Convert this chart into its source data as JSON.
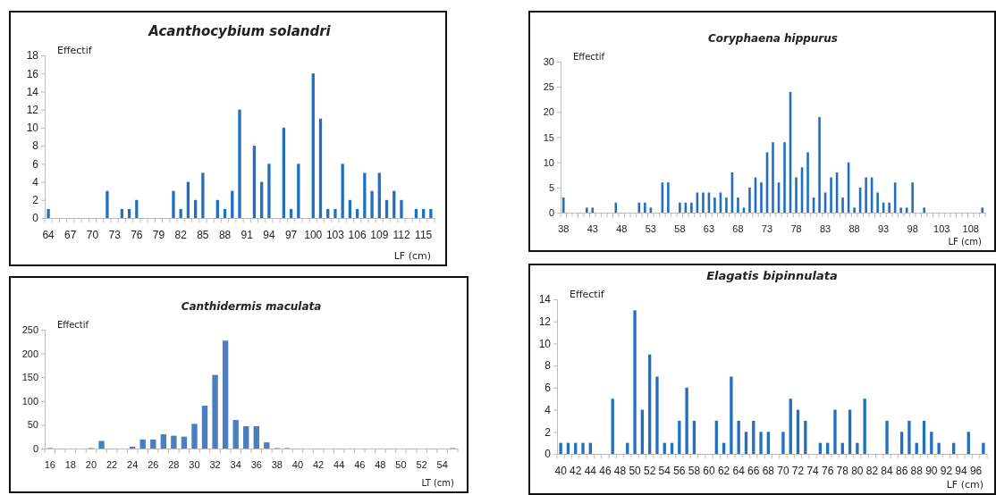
{
  "chart_data": [
    {
      "type": "bar",
      "title": "Acanthocybium solandri",
      "xlabel": "LF (cm)",
      "ylabel": "Effectif",
      "color": "#1f70c1",
      "ylim": [
        0,
        18
      ],
      "yticks": [
        0,
        2,
        4,
        6,
        8,
        10,
        12,
        14,
        16,
        18
      ],
      "categories": [
        "64",
        null,
        null,
        "67",
        null,
        null,
        "70",
        null,
        null,
        "73",
        null,
        null,
        "76",
        null,
        null,
        "79",
        null,
        null,
        "82",
        null,
        null,
        "85",
        null,
        null,
        "88",
        null,
        null,
        "91",
        null,
        null,
        "94",
        null,
        null,
        "97",
        null,
        null,
        "100",
        null,
        null,
        "103",
        null,
        null,
        "106",
        null,
        null,
        "109",
        null,
        null,
        "112",
        null,
        null,
        "115",
        null
      ],
      "values": [
        1,
        0,
        0,
        0,
        0,
        0,
        0,
        0,
        3,
        0,
        1,
        1,
        2,
        0,
        0,
        0,
        0,
        3,
        1,
        4,
        2,
        5,
        0,
        2,
        1,
        3,
        12,
        0,
        8,
        4,
        6,
        0,
        10,
        1,
        6,
        0,
        16,
        11,
        1,
        1,
        6,
        2,
        1,
        5,
        3,
        5,
        2,
        3,
        2,
        0,
        1,
        1,
        1
      ]
    },
    {
      "type": "bar",
      "title": "Coryphaena hippurus",
      "xlabel": "LF (cm)",
      "ylabel": "Effectif",
      "color": "#1f70c1",
      "ylim": [
        0,
        30
      ],
      "yticks": [
        0,
        5,
        10,
        15,
        20,
        25,
        30
      ],
      "categories": [
        "38",
        null,
        null,
        null,
        null,
        "43",
        null,
        null,
        null,
        null,
        "48",
        null,
        null,
        null,
        null,
        "53",
        null,
        null,
        null,
        null,
        "58",
        null,
        null,
        null,
        null,
        "63",
        null,
        null,
        null,
        null,
        "68",
        null,
        null,
        null,
        null,
        "73",
        null,
        null,
        null,
        null,
        "78",
        null,
        null,
        null,
        null,
        "83",
        null,
        null,
        null,
        null,
        "88",
        null,
        null,
        null,
        null,
        "93",
        null,
        null,
        null,
        null,
        "98",
        null,
        null,
        null,
        null,
        "103",
        null,
        null,
        null,
        null,
        "108",
        null,
        null
      ],
      "values": [
        3,
        0,
        0,
        0,
        1,
        1,
        0,
        0,
        0,
        2,
        0,
        0,
        0,
        2,
        2,
        1,
        0,
        6,
        6,
        0,
        2,
        2,
        2,
        4,
        4,
        4,
        3,
        4,
        3,
        8,
        3,
        1,
        5,
        7,
        6,
        12,
        14,
        6,
        14,
        24,
        7,
        9,
        12,
        3,
        19,
        4,
        7,
        8,
        3,
        10,
        1,
        5,
        7,
        7,
        4,
        2,
        2,
        6,
        1,
        1,
        6,
        0,
        1,
        0,
        0,
        0,
        0,
        0,
        0,
        0,
        0,
        0,
        1
      ]
    },
    {
      "type": "bar",
      "title": "Canthidermis maculata",
      "xlabel": "LT (cm)",
      "ylabel": "Effectif",
      "color": "#4a7ebf",
      "ylim": [
        0,
        250
      ],
      "yticks": [
        0,
        50,
        100,
        150,
        200,
        250
      ],
      "categories": [
        "16",
        null,
        "18",
        null,
        "20",
        null,
        "22",
        null,
        "24",
        null,
        "26",
        null,
        "28",
        null,
        "30",
        null,
        "32",
        null,
        "34",
        null,
        "36",
        null,
        "38",
        null,
        "40",
        null,
        "42",
        null,
        "44",
        null,
        "46",
        null,
        "48",
        null,
        "50",
        null,
        "52",
        null,
        "54",
        null
      ],
      "values": [
        1,
        0,
        0,
        0,
        1,
        16,
        0,
        0,
        4,
        19,
        19,
        30,
        27,
        25,
        52,
        90,
        155,
        227,
        60,
        47,
        47,
        13,
        1,
        1,
        0,
        0,
        0,
        0,
        0,
        0,
        0,
        0,
        0,
        0,
        0,
        0,
        0,
        0,
        0,
        1
      ]
    },
    {
      "type": "bar",
      "title": "Elagatis bipinnulata",
      "xlabel": "LF (cm)",
      "ylabel": "Effectif",
      "color": "#1f70c1",
      "ylim": [
        0,
        14
      ],
      "yticks": [
        0,
        2,
        4,
        6,
        8,
        10,
        12,
        14
      ],
      "categories": [
        "40",
        null,
        "42",
        null,
        "44",
        null,
        "46",
        null,
        "48",
        null,
        "50",
        null,
        "52",
        null,
        "54",
        null,
        "56",
        null,
        "58",
        null,
        "60",
        null,
        "62",
        null,
        "64",
        null,
        "66",
        null,
        "68",
        null,
        "70",
        null,
        "72",
        null,
        "74",
        null,
        "76",
        null,
        "78",
        null,
        "80",
        null,
        "82",
        null,
        "84",
        null,
        "86",
        null,
        "88",
        null,
        "90",
        null,
        "92",
        null,
        "94",
        null,
        "96",
        null
      ],
      "values": [
        1,
        1,
        1,
        1,
        1,
        0,
        0,
        5,
        0,
        1,
        13,
        4,
        9,
        7,
        1,
        1,
        3,
        6,
        3,
        0,
        0,
        3,
        1,
        7,
        3,
        2,
        3,
        2,
        2,
        0,
        2,
        5,
        4,
        3,
        0,
        1,
        1,
        4,
        1,
        4,
        1,
        5,
        0,
        0,
        3,
        0,
        2,
        3,
        1,
        3,
        2,
        1,
        0,
        1,
        0,
        2,
        0,
        1
      ]
    }
  ]
}
